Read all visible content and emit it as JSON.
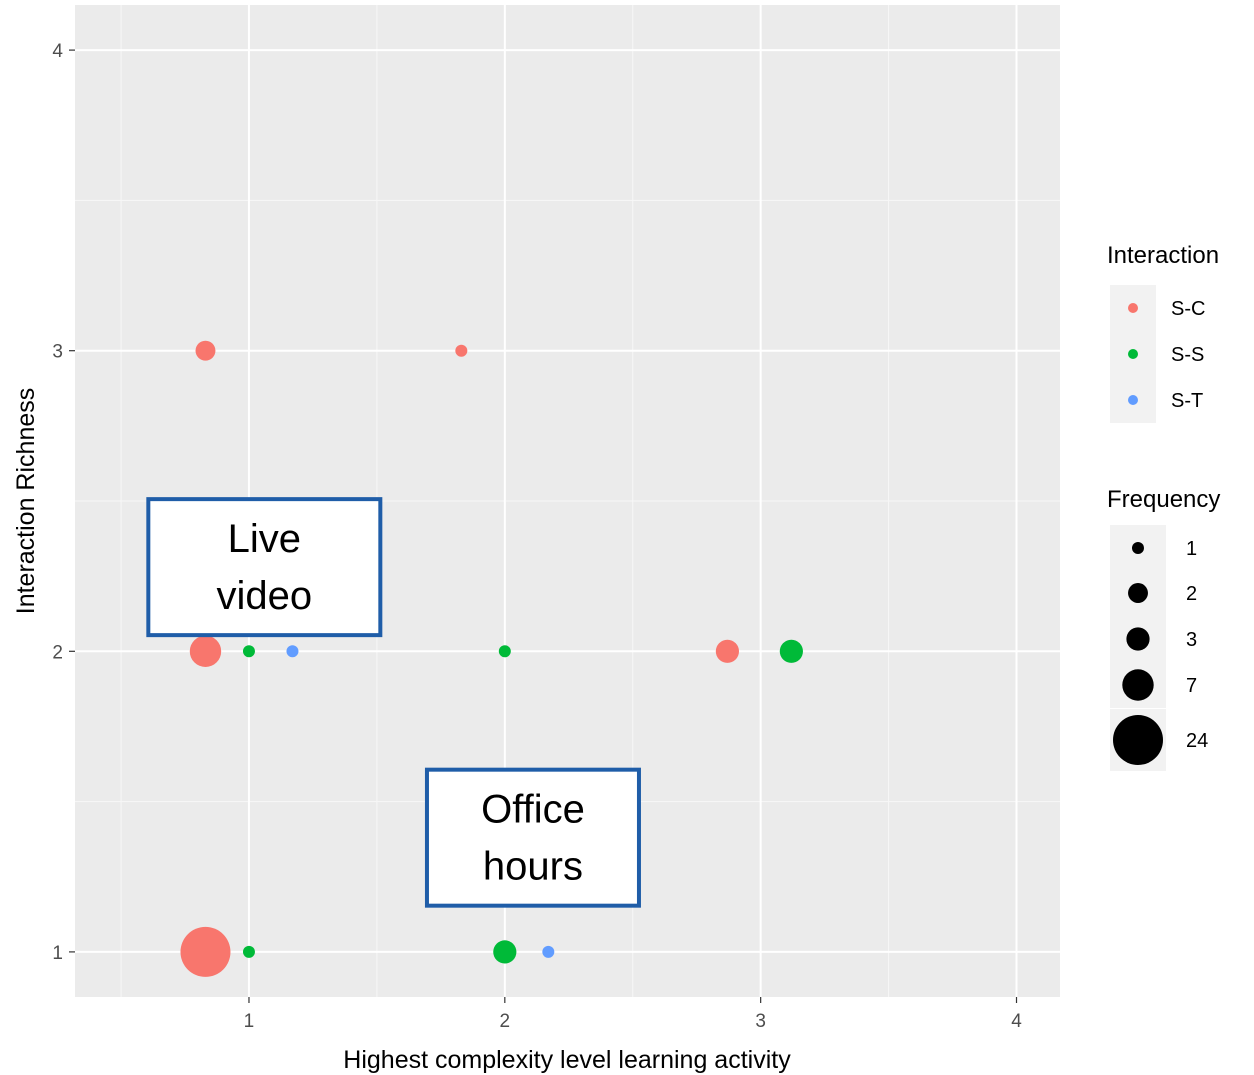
{
  "chart_data": {
    "type": "scatter",
    "xlabel": "Highest complexity level learning activity",
    "ylabel": "Interaction Richness",
    "xlim": [
      0.32,
      4.17
    ],
    "ylim": [
      0.85,
      4.15
    ],
    "x_ticks": [
      "1",
      "2",
      "3",
      "4"
    ],
    "y_ticks": [
      "1",
      "2",
      "3",
      "4"
    ],
    "grid": true,
    "legend_position": "right",
    "series": [
      {
        "name": "S-C",
        "color": "#F8766D",
        "points": [
          {
            "x": 0.83,
            "y": 3,
            "frequency": 2
          },
          {
            "x": 1.83,
            "y": 3,
            "frequency": 1
          },
          {
            "x": 0.83,
            "y": 2,
            "frequency": 7
          },
          {
            "x": 2.87,
            "y": 2,
            "frequency": 3
          },
          {
            "x": 0.83,
            "y": 1,
            "frequency": 24
          }
        ]
      },
      {
        "name": "S-S",
        "color": "#00BA38",
        "points": [
          {
            "x": 1.0,
            "y": 2,
            "frequency": 1
          },
          {
            "x": 2.0,
            "y": 2,
            "frequency": 1
          },
          {
            "x": 3.12,
            "y": 2,
            "frequency": 3
          },
          {
            "x": 1.0,
            "y": 1,
            "frequency": 1
          },
          {
            "x": 2.0,
            "y": 1,
            "frequency": 3
          }
        ]
      },
      {
        "name": "S-T",
        "color": "#619CFF",
        "points": [
          {
            "x": 1.17,
            "y": 2,
            "frequency": 1
          },
          {
            "x": 2.17,
            "y": 1,
            "frequency": 1
          }
        ]
      }
    ],
    "legend_color": {
      "title": "Interaction",
      "items": [
        {
          "label": "S-C",
          "color": "#F8766D"
        },
        {
          "label": "S-S",
          "color": "#00BA38"
        },
        {
          "label": "S-T",
          "color": "#619CFF"
        }
      ]
    },
    "legend_size": {
      "title": "Frequency",
      "items": [
        {
          "label": "1",
          "value": 1
        },
        {
          "label": "2",
          "value": 2
        },
        {
          "label": "3",
          "value": 3
        },
        {
          "label": "7",
          "value": 7
        },
        {
          "label": "24",
          "value": 24
        }
      ]
    },
    "annotations": [
      {
        "lines": [
          "Live",
          "video"
        ],
        "x": 1.06,
        "y": 2.28
      },
      {
        "lines": [
          "Office",
          "hours"
        ],
        "x": 2.11,
        "y": 1.38
      }
    ]
  }
}
